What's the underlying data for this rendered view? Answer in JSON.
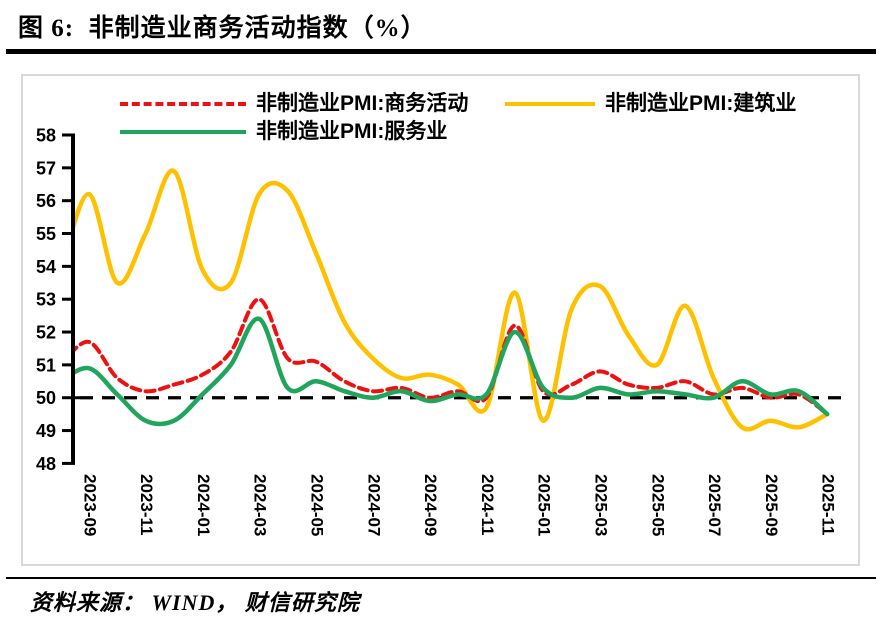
{
  "title": "图 6:  非制造业商务活动指数（%）",
  "source": "资料来源： WIND， 财信研究院",
  "unit": "%",
  "colors": {
    "business_activity": "#ee1111",
    "services": "#21a55c",
    "construction": "#ffc000",
    "reference_line": "#000000"
  },
  "legend": {
    "position": "top",
    "items": [
      {
        "key": "business_activity",
        "label": "非制造业PMI:商务活动",
        "style": "dashed",
        "color": "#ee1111"
      },
      {
        "key": "services",
        "label": "非制造业PMI:服务业",
        "style": "solid",
        "color": "#21a55c"
      },
      {
        "key": "construction",
        "label": "非制造业PMI:建筑业",
        "style": "solid",
        "color": "#ffc000"
      }
    ]
  },
  "chart_data": {
    "type": "line",
    "title": "非制造业商务活动指数（%）",
    "xlabel": "",
    "ylabel": "",
    "grid": false,
    "legend_position": "top",
    "ylim": [
      48,
      58
    ],
    "y_ticks": [
      48,
      49,
      50,
      51,
      52,
      53,
      54,
      55,
      56,
      57,
      58
    ],
    "reference_line": {
      "value": 50,
      "style": "dashed",
      "color": "#000000"
    },
    "x": [
      "2023-09",
      "2023-10",
      "2023-11",
      "2023-12",
      "2024-01",
      "2024-02",
      "2024-03",
      "2024-04",
      "2024-05",
      "2024-06",
      "2024-07",
      "2024-08",
      "2024-09",
      "2024-10",
      "2024-11",
      "2024-12",
      "2025-01",
      "2025-02",
      "2025-03",
      "2025-04",
      "2025-05",
      "2025-06",
      "2025-07",
      "2025-08",
      "2025-09",
      "2025-10",
      "2025-11"
    ],
    "x_axis_tick_labels": [
      "2023-09",
      "2023-11",
      "2024-01",
      "2024-03",
      "2024-05",
      "2024-07",
      "2024-09",
      "2024-11",
      "2025-01",
      "2025-03",
      "2025-05",
      "2025-07",
      "2025-09",
      "2025-11"
    ],
    "series": [
      {
        "key": "business_activity",
        "name": "非制造业PMI:商务活动",
        "color": "#ee1111",
        "line_style": "dashed",
        "edge_lead_in_value": 51.0,
        "values": [
          51.7,
          50.6,
          50.2,
          50.4,
          50.7,
          51.4,
          53.0,
          51.2,
          51.1,
          50.5,
          50.2,
          50.3,
          50.0,
          50.2,
          50.0,
          52.2,
          50.2,
          50.4,
          50.8,
          50.4,
          50.3,
          50.5,
          50.1,
          50.3,
          50.0,
          50.1,
          49.5
        ]
      },
      {
        "key": "services",
        "name": "非制造业PMI:服务业",
        "color": "#21a55c",
        "line_style": "solid",
        "edge_lead_in_value": 50.5,
        "values": [
          50.9,
          50.1,
          49.3,
          49.3,
          50.1,
          51.0,
          52.4,
          50.3,
          50.5,
          50.2,
          50.0,
          50.2,
          49.9,
          50.1,
          50.1,
          52.0,
          50.3,
          50.0,
          50.3,
          50.1,
          50.2,
          50.1,
          50.0,
          50.5,
          50.1,
          50.2,
          49.5
        ]
      },
      {
        "key": "construction",
        "name": "非制造业PMI:建筑业",
        "color": "#ffc000",
        "line_style": "solid",
        "edge_lead_in_value": 53.8,
        "values": [
          56.2,
          53.5,
          55.0,
          56.9,
          53.9,
          53.5,
          56.2,
          56.3,
          54.4,
          52.3,
          51.2,
          50.6,
          50.7,
          50.4,
          49.7,
          53.2,
          49.3,
          52.7,
          53.4,
          51.9,
          51.0,
          52.8,
          50.6,
          49.1,
          49.3,
          49.1,
          49.5
        ]
      }
    ]
  }
}
